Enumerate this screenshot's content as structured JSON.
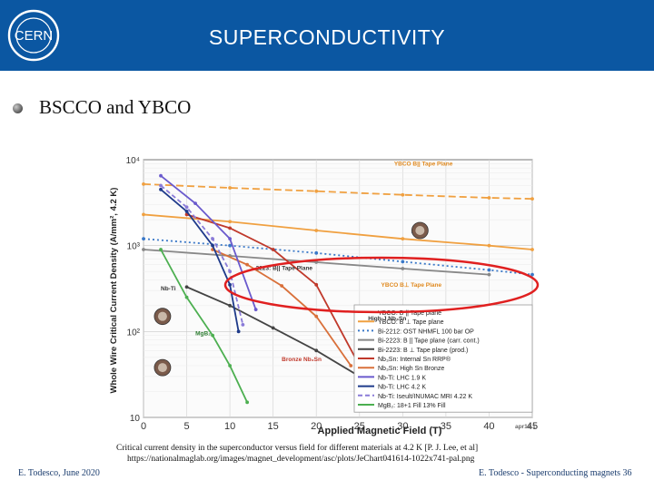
{
  "header": {
    "title": "SUPERCONDUCTIVITY",
    "logo_text": "CERN"
  },
  "bullet": {
    "text": "BSCCO and YBCO"
  },
  "caption": {
    "line1": "Critical current density in the superconductor versus field for different materials at 4.2 K [P. J. Lee, et al]",
    "line2": "https://nationalmaglab.org/images/magnet_development/asc/plots/JeChart041614-1022x741-pal.png"
  },
  "footer": {
    "left": "E. Todesco, June 2020",
    "right": "E. Todesco - Superconducting magnets 36"
  },
  "chart_data": {
    "type": "line",
    "xlabel": "Applied Magnetic Field (T)",
    "ylabel": "Whole Wire Critical Current Density (A/mm², 4.2 K)",
    "xlim": [
      0,
      45
    ],
    "ylim": [
      10,
      10000
    ],
    "yscale": "log",
    "xticks": [
      "0",
      "5",
      "10",
      "15",
      "20",
      "25",
      "30",
      "35",
      "40",
      "45"
    ],
    "yticks": [
      {
        "v": 10,
        "label": "10"
      },
      {
        "v": 100,
        "label": "10²"
      },
      {
        "v": 1000,
        "label": "10³"
      },
      {
        "v": 10000,
        "label": "10⁴"
      }
    ],
    "grid": true,
    "legend_position": "bottom-right",
    "series": [
      {
        "name": "YBCO: B || Tape plane",
        "color": "#f0a040",
        "dash": "8,4",
        "x": [
          0,
          10,
          20,
          30,
          40,
          45
        ],
        "y": [
          5200,
          4700,
          4300,
          3900,
          3600,
          3500
        ]
      },
      {
        "name": "YBCO: B ⊥ Tape plane",
        "color": "#f0a040",
        "dash": "",
        "x": [
          0,
          10,
          20,
          30,
          40,
          45
        ],
        "y": [
          2300,
          1900,
          1500,
          1200,
          1000,
          900
        ]
      },
      {
        "name": "Bi-2212: OST NHMFL 100 bar OP",
        "color": "#3a78c8",
        "dash": "2,3",
        "x": [
          0,
          10,
          20,
          30,
          40,
          45
        ],
        "y": [
          1200,
          1000,
          820,
          650,
          520,
          460
        ]
      },
      {
        "name": "Bi-2223: B || Tape plane (carr. cont.)",
        "color": "#888888",
        "dash": "",
        "x": [
          0,
          10,
          20,
          30,
          40
        ],
        "y": [
          900,
          760,
          640,
          540,
          460
        ]
      },
      {
        "name": "Bi-2223: B ⊥ Tape plane (prod.)",
        "color": "#444444",
        "dash": "",
        "x": [
          5,
          10,
          15,
          20,
          25
        ],
        "y": [
          330,
          200,
          110,
          60,
          30
        ]
      },
      {
        "name": "Nb₃Sn: Internal Sn RRP®",
        "color": "#c0392b",
        "dash": "",
        "x": [
          5,
          10,
          15,
          20,
          25
        ],
        "y": [
          2300,
          1600,
          900,
          350,
          40
        ]
      },
      {
        "name": "Nb₃Sn: High Sn Bronze",
        "color": "#d9703a",
        "dash": "",
        "x": [
          8,
          12,
          16,
          20,
          24
        ],
        "y": [
          900,
          600,
          340,
          150,
          40
        ]
      },
      {
        "name": "Nb-Ti: LHC 1.9 K",
        "color": "#6a5acd",
        "dash": "",
        "x": [
          2,
          6,
          10,
          13
        ],
        "y": [
          6500,
          3100,
          1200,
          180
        ]
      },
      {
        "name": "Nb-Ti: LHC 4.2 K",
        "color": "#1e3a8a",
        "dash": "",
        "x": [
          2,
          5,
          8,
          10,
          11
        ],
        "y": [
          4500,
          2500,
          1000,
          350,
          100
        ]
      },
      {
        "name": "Nb-Ti: Iseult/INUMAC MRI 4.22 K",
        "color": "#8a7bd8",
        "dash": "5,3",
        "x": [
          2,
          5,
          8,
          10,
          11.5
        ],
        "y": [
          5000,
          2800,
          1200,
          500,
          120
        ]
      },
      {
        "name": "MgB₂: 18+1 Fill 13% Fill",
        "color": "#4caf50",
        "dash": "",
        "x": [
          2,
          5,
          8,
          10,
          12
        ],
        "y": [
          900,
          250,
          90,
          40,
          15
        ]
      }
    ],
    "annotations": [
      "YBCO B|| Tape Plane",
      "YBCO B⊥ Tape Plane",
      "2212",
      "2223: B|| Tape Plane",
      "Nb-Ti",
      "Bronze Nb₃Sn",
      "High-J Nb₃Sn",
      "MgB₂",
      "apr12.1"
    ]
  },
  "colors": {
    "header": "#0b57a2",
    "highlight": "#e02020"
  }
}
